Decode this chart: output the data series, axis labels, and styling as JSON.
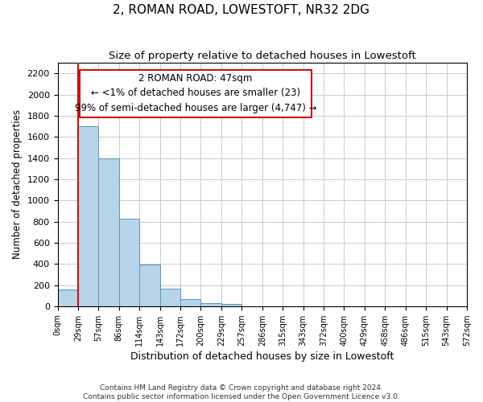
{
  "title": "2, ROMAN ROAD, LOWESTOFT, NR32 2DG",
  "subtitle": "Size of property relative to detached houses in Lowestoft",
  "xlabel": "Distribution of detached houses by size in Lowestoft",
  "ylabel": "Number of detached properties",
  "bar_values": [
    160,
    1700,
    1400,
    830,
    390,
    165,
    65,
    30,
    20,
    0,
    0,
    0,
    0,
    0,
    0,
    0,
    0,
    0,
    0,
    0
  ],
  "bar_labels": [
    "0sqm",
    "29sqm",
    "57sqm",
    "86sqm",
    "114sqm",
    "143sqm",
    "172sqm",
    "200sqm",
    "229sqm",
    "257sqm",
    "286sqm",
    "315sqm",
    "343sqm",
    "372sqm",
    "400sqm",
    "429sqm",
    "458sqm",
    "486sqm",
    "515sqm",
    "543sqm",
    "572sqm"
  ],
  "bar_color": "#b8d4e8",
  "bar_edge_color": "#5599bb",
  "vline_x": 1,
  "vline_color": "#cc1111",
  "annotation_line1": "2 ROMAN ROAD: 47sqm",
  "annotation_line2": "← <1% of detached houses are smaller (23)",
  "annotation_line3": "99% of semi-detached houses are larger (4,747) →",
  "ylim": [
    0,
    2300
  ],
  "yticks": [
    0,
    200,
    400,
    600,
    800,
    1000,
    1200,
    1400,
    1600,
    1800,
    2000,
    2200
  ],
  "footnote1": "Contains HM Land Registry data © Crown copyright and database right 2024.",
  "footnote2": "Contains public sector information licensed under the Open Government Licence v3.0.",
  "background_color": "#ffffff",
  "grid_color": "#cccccc",
  "title_fontsize": 11,
  "subtitle_fontsize": 9.5,
  "ylabel_fontsize": 8.5,
  "xlabel_fontsize": 9
}
